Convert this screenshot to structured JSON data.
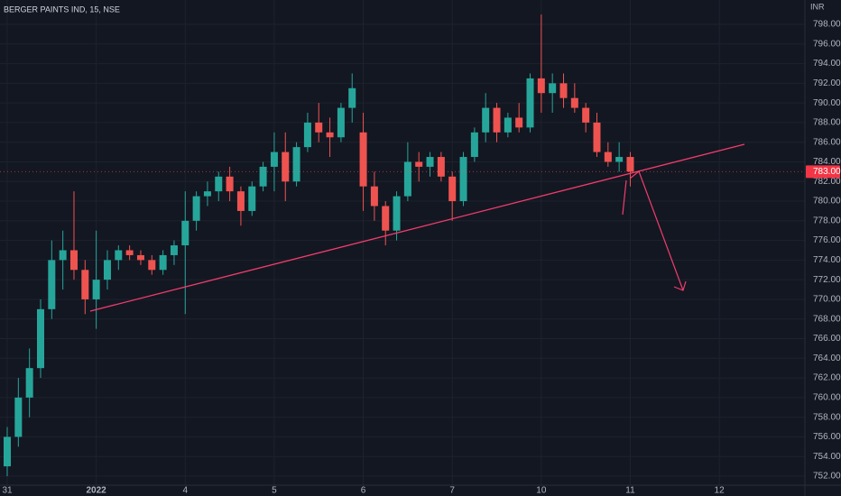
{
  "chart_data": {
    "type": "candlestick",
    "title": "BERGER PAINTS IND, 15, NSE",
    "currency": "INR",
    "up_color": "#26a69a",
    "down_color": "#ef5350",
    "categories": [
      "31",
      null,
      null,
      null,
      null,
      null,
      null,
      null,
      "2022",
      null,
      null,
      null,
      null,
      null,
      null,
      null,
      "4",
      null,
      null,
      null,
      null,
      null,
      null,
      null,
      "5",
      null,
      null,
      null,
      null,
      null,
      null,
      null,
      "6",
      null,
      null,
      null,
      null,
      null,
      null,
      null,
      "7",
      null,
      null,
      null,
      null,
      null,
      null,
      null,
      "10",
      null,
      null,
      null,
      null,
      null,
      null,
      null,
      "11",
      null,
      null,
      null,
      null,
      null,
      null,
      null,
      "12"
    ],
    "open": [
      753,
      756,
      760,
      763,
      769,
      774,
      775,
      773,
      770,
      772,
      774,
      775,
      774.5,
      774,
      773,
      774.5,
      775.5,
      778,
      780.5,
      781,
      782.5,
      781,
      779,
      781.5,
      783.5,
      785,
      782,
      785.5,
      788,
      787,
      786.5,
      789.5,
      787,
      781.5,
      779.5,
      777,
      780.5,
      784,
      783.5,
      784.5,
      782.5,
      780,
      784.5,
      787,
      789.5,
      787,
      788.5,
      787.5,
      792.5,
      791,
      792,
      790.5,
      789.5,
      788,
      785,
      784,
      784.5,
      null,
      null,
      null,
      null,
      null,
      null,
      null,
      null
    ],
    "high": [
      757,
      762,
      765,
      770,
      776,
      777,
      781,
      774,
      777,
      775,
      775.5,
      775.5,
      775,
      774.5,
      775,
      776,
      781,
      781,
      782,
      783,
      783.5,
      781.5,
      782,
      784,
      787,
      787,
      786,
      789,
      790,
      788.5,
      790,
      793,
      789,
      783,
      780,
      781,
      786,
      785,
      785,
      785,
      783,
      785,
      787.5,
      791,
      790,
      789,
      790,
      793,
      799,
      793,
      793,
      792,
      790,
      789,
      786,
      786,
      785,
      null,
      null,
      null,
      null,
      null,
      null,
      null,
      null
    ],
    "low": [
      752,
      755,
      758,
      762,
      768,
      771,
      772,
      768.5,
      767,
      771,
      773,
      774,
      773.5,
      772.5,
      772.5,
      773.5,
      768.5,
      777,
      779.5,
      780,
      780,
      777.5,
      778.5,
      781,
      781,
      780,
      781.5,
      785,
      786,
      784.5,
      786,
      788,
      779,
      778,
      775.5,
      776,
      780,
      782,
      782.5,
      782,
      778,
      779.5,
      784,
      786,
      786,
      786.5,
      787,
      787,
      789,
      789,
      789.5,
      789,
      787,
      784.5,
      783.5,
      783,
      781.5,
      null,
      null,
      null,
      null,
      null,
      null,
      null,
      null
    ],
    "close": [
      756,
      760,
      763,
      769,
      774,
      775,
      773,
      770,
      772,
      774,
      775,
      774.5,
      774,
      773,
      774.5,
      775.5,
      778,
      780.5,
      781,
      782.5,
      781,
      779,
      781.5,
      783.5,
      785,
      782,
      785.5,
      788,
      787,
      786.5,
      789.5,
      791.5,
      781.5,
      779.5,
      777,
      780.5,
      784,
      783.5,
      784.5,
      782.5,
      780,
      784.5,
      787,
      789.5,
      787,
      788.5,
      787.5,
      792.5,
      791,
      792,
      790.5,
      789.5,
      788,
      785,
      784,
      784.5,
      783,
      null,
      null,
      null,
      null,
      null,
      null,
      null,
      null
    ],
    "last_value": 783,
    "last_value_label": "783.00",
    "ylim": [
      751.08,
      800.48
    ],
    "yticks": [
      {
        "value": 752,
        "label": "752.00"
      },
      {
        "value": 754,
        "label": "754.00"
      },
      {
        "value": 756,
        "label": "756.00"
      },
      {
        "value": 758,
        "label": "758.00"
      },
      {
        "value": 760,
        "label": "760.00"
      },
      {
        "value": 762,
        "label": "762.00"
      },
      {
        "value": 764,
        "label": "764.00"
      },
      {
        "value": 766,
        "label": "766.00"
      },
      {
        "value": 768,
        "label": "768.00"
      },
      {
        "value": 770,
        "label": "770.00"
      },
      {
        "value": 772,
        "label": "772.00"
      },
      {
        "value": 774,
        "label": "774.00"
      },
      {
        "value": 776,
        "label": "776.00"
      },
      {
        "value": 778,
        "label": "778.00"
      },
      {
        "value": 780,
        "label": "780.00"
      },
      {
        "value": 782,
        "label": "782.00"
      },
      {
        "value": 784,
        "label": "784.00"
      },
      {
        "value": 786,
        "label": "786.00"
      },
      {
        "value": 788,
        "label": "788.00"
      },
      {
        "value": 790,
        "label": "790.00"
      },
      {
        "value": 792,
        "label": "792.00"
      },
      {
        "value": 794,
        "label": "794.00"
      },
      {
        "value": 796,
        "label": "796.00"
      },
      {
        "value": 798,
        "label": "798.00"
      }
    ],
    "grid": true
  }
}
